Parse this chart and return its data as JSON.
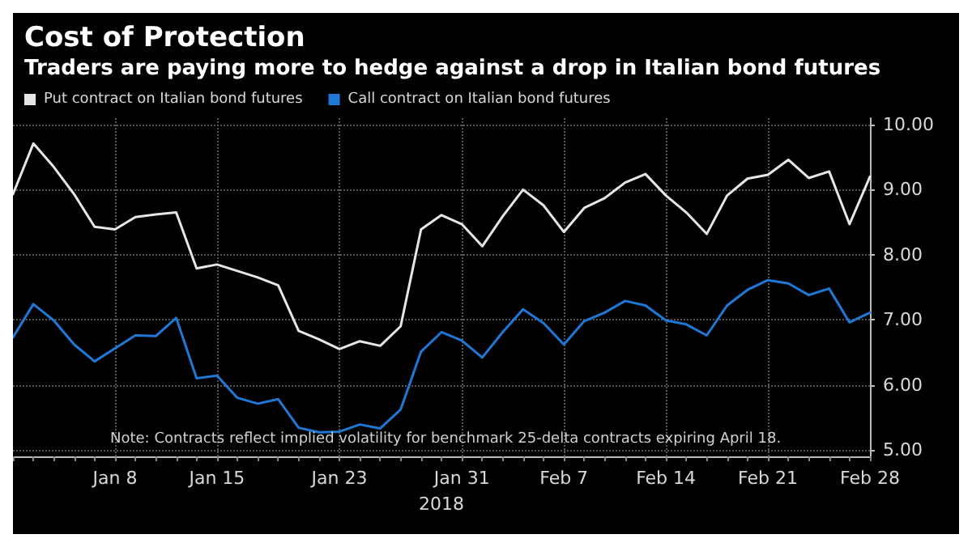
{
  "chart_data": {
    "type": "line",
    "title": "Cost of Protection",
    "subtitle": "Traders are paying more to hedge against a drop in Italian bond futures",
    "xlabel": "2018",
    "categories": [
      null,
      null,
      null,
      null,
      null,
      "Jan 8",
      null,
      null,
      null,
      null,
      "Jan 15",
      null,
      null,
      null,
      null,
      null,
      "Jan 23",
      null,
      null,
      null,
      null,
      null,
      "Jan 31",
      null,
      null,
      null,
      null,
      "Feb 7",
      null,
      null,
      null,
      null,
      "Feb 14",
      null,
      null,
      null,
      null,
      "Feb 21",
      null,
      null,
      null,
      null,
      "Feb 28"
    ],
    "series": [
      {
        "name": "Put contract on Italian bond futures",
        "color": "#e6e6e6",
        "values": [
          8.93,
          9.71,
          9.35,
          8.93,
          8.43,
          8.39,
          8.58,
          8.62,
          8.65,
          7.79,
          7.85,
          7.75,
          7.65,
          7.53,
          6.83,
          6.7,
          6.55,
          6.67,
          6.6,
          6.9,
          8.39,
          8.61,
          8.47,
          8.13,
          8.59,
          9.0,
          8.76,
          8.35,
          8.72,
          8.87,
          9.11,
          9.24,
          8.91,
          8.65,
          8.32,
          8.91,
          9.17,
          9.23,
          9.46,
          9.18,
          9.28,
          8.47,
          9.2
        ]
      },
      {
        "name": "Call contract on Italian bond futures",
        "color": "#1f78d6",
        "values": [
          6.73,
          7.24,
          6.99,
          6.62,
          6.36,
          6.56,
          6.76,
          6.75,
          7.03,
          6.1,
          6.14,
          5.8,
          5.71,
          5.78,
          5.34,
          5.27,
          5.28,
          5.39,
          5.33,
          5.62,
          6.51,
          6.81,
          6.68,
          6.42,
          6.81,
          7.16,
          6.95,
          6.62,
          6.98,
          7.11,
          7.29,
          7.22,
          6.99,
          6.93,
          6.76,
          7.22,
          7.46,
          7.61,
          7.56,
          7.38,
          7.48,
          6.96,
          7.11
        ]
      }
    ],
    "ylim": [
      4.9,
      10.1
    ],
    "yticks": [
      {
        "value": 5,
        "label": "5.00"
      },
      {
        "value": 6,
        "label": "6.00"
      },
      {
        "value": 7,
        "label": "7.00"
      },
      {
        "value": 8,
        "label": "8.00"
      },
      {
        "value": 9,
        "label": "9.00"
      },
      {
        "value": 10,
        "label": "10.00"
      }
    ],
    "grid": true,
    "legend": "top left",
    "marker": "none",
    "line_style": "solid",
    "annotations": [
      "Note: Contracts reflect implied volatility for benchmark 25-delta contracts expiring April 18."
    ]
  }
}
